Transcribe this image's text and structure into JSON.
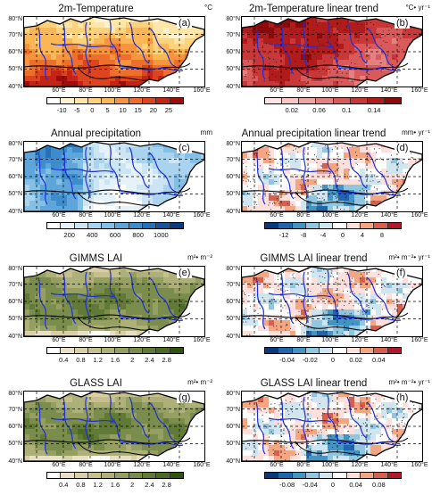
{
  "lat_labels": [
    "80°N",
    "70°N",
    "60°N",
    "50°N",
    "40°N"
  ],
  "lon_labels": [
    "60°E",
    "80°E",
    "100°E",
    "120°E",
    "140°E",
    "160°E"
  ],
  "panels": [
    {
      "id": "a",
      "title": "2m-Temperature",
      "unit": "°C",
      "label": "(a)",
      "type": "seq_warm",
      "colors": [
        "#ffffff",
        "#fdf3d2",
        "#fde6a6",
        "#fdd27a",
        "#fbb655",
        "#f7943f",
        "#ee6e2b",
        "#dc4520",
        "#c32417",
        "#a00c0c"
      ],
      "ticks": [
        "-10",
        "-5",
        "0",
        "5",
        "10",
        "15",
        "20",
        "25"
      ],
      "stipple": false
    },
    {
      "id": "b",
      "title": "2m-Temperature linear trend",
      "unit": "°C• yr⁻¹",
      "label": "(b)",
      "type": "red_pos",
      "colors": [
        "#fde5e5",
        "#f8c5c5",
        "#f0a4a4",
        "#e58080",
        "#d95a5a",
        "#c93838",
        "#b01b1b",
        "#8c0a0a"
      ],
      "ticks": [
        "0.02",
        "0.06",
        "0.1",
        "0.14"
      ],
      "stipple": true
    },
    {
      "id": "c",
      "title": "Annual precipitation",
      "unit": "mm",
      "label": "(c)",
      "type": "seq_blue",
      "colors": [
        "#ffffff",
        "#e6f2fa",
        "#cce5f4",
        "#a9d3ee",
        "#84bfe5",
        "#5ea6da",
        "#3d8ccb",
        "#2570b8",
        "#15549d",
        "#0b3a7c"
      ],
      "ticks": [
        "200",
        "400",
        "600",
        "800",
        "1000"
      ],
      "stipple": false
    },
    {
      "id": "d",
      "title": "Annual precipitation linear trend",
      "unit": "mm• yr⁻¹",
      "label": "(d)",
      "type": "div",
      "colors": [
        "#0b3a7c",
        "#2166ac",
        "#4393c3",
        "#92c5de",
        "#d1e5f0",
        "#ffffff",
        "#fde0dc",
        "#f4a582",
        "#d6604d",
        "#b2182b"
      ],
      "ticks": [
        "-12",
        "-8",
        "-4",
        "0",
        "4",
        "8"
      ],
      "stipple": true
    },
    {
      "id": "e",
      "title": "GIMMS LAI",
      "unit": "m²• m⁻²",
      "label": "(e)",
      "type": "seq_green",
      "colors": [
        "#ffffff",
        "#e8dfc8",
        "#d8cfa8",
        "#c6c08f",
        "#aeb07a",
        "#959f62",
        "#7b8d4c",
        "#627a38",
        "#4c6a26",
        "#2f5412"
      ],
      "ticks": [
        "0.4",
        "0.8",
        "1.2",
        "1.6",
        "2",
        "2.4",
        "2.8"
      ],
      "stipple": false
    },
    {
      "id": "f",
      "title": "GIMMS LAI linear trend",
      "unit": "m²• m⁻²• yr⁻¹",
      "label": "(f)",
      "type": "div",
      "colors": [
        "#0b3a7c",
        "#2166ac",
        "#4393c3",
        "#92c5de",
        "#d1e5f0",
        "#ffffff",
        "#fde0dc",
        "#f4a582",
        "#d6604d",
        "#b2182b"
      ],
      "ticks": [
        "-0.04",
        "-0.02",
        "0",
        "0.02",
        "0.04"
      ],
      "stipple": true
    },
    {
      "id": "g",
      "title": "GLASS LAI",
      "unit": "m²• m⁻²",
      "label": "(g)",
      "type": "seq_green",
      "colors": [
        "#ffffff",
        "#e8dfc8",
        "#d8cfa8",
        "#c6c08f",
        "#aeb07a",
        "#959f62",
        "#7b8d4c",
        "#627a38",
        "#4c6a26",
        "#2f5412"
      ],
      "ticks": [
        "0.4",
        "0.8",
        "1.2",
        "1.6",
        "2",
        "2.4",
        "2.8"
      ],
      "stipple": false
    },
    {
      "id": "h",
      "title": "GLASS LAI linear trend",
      "unit": "m²• m⁻²• yr⁻¹",
      "label": "(h)",
      "type": "div",
      "colors": [
        "#0b3a7c",
        "#2166ac",
        "#4393c3",
        "#92c5de",
        "#d1e5f0",
        "#ffffff",
        "#fde0dc",
        "#f4a582",
        "#d6604d",
        "#b2182b"
      ],
      "ticks": [
        "-0.08",
        "-0.04",
        "0",
        "0.04",
        "0.08"
      ],
      "stipple": true
    }
  ]
}
